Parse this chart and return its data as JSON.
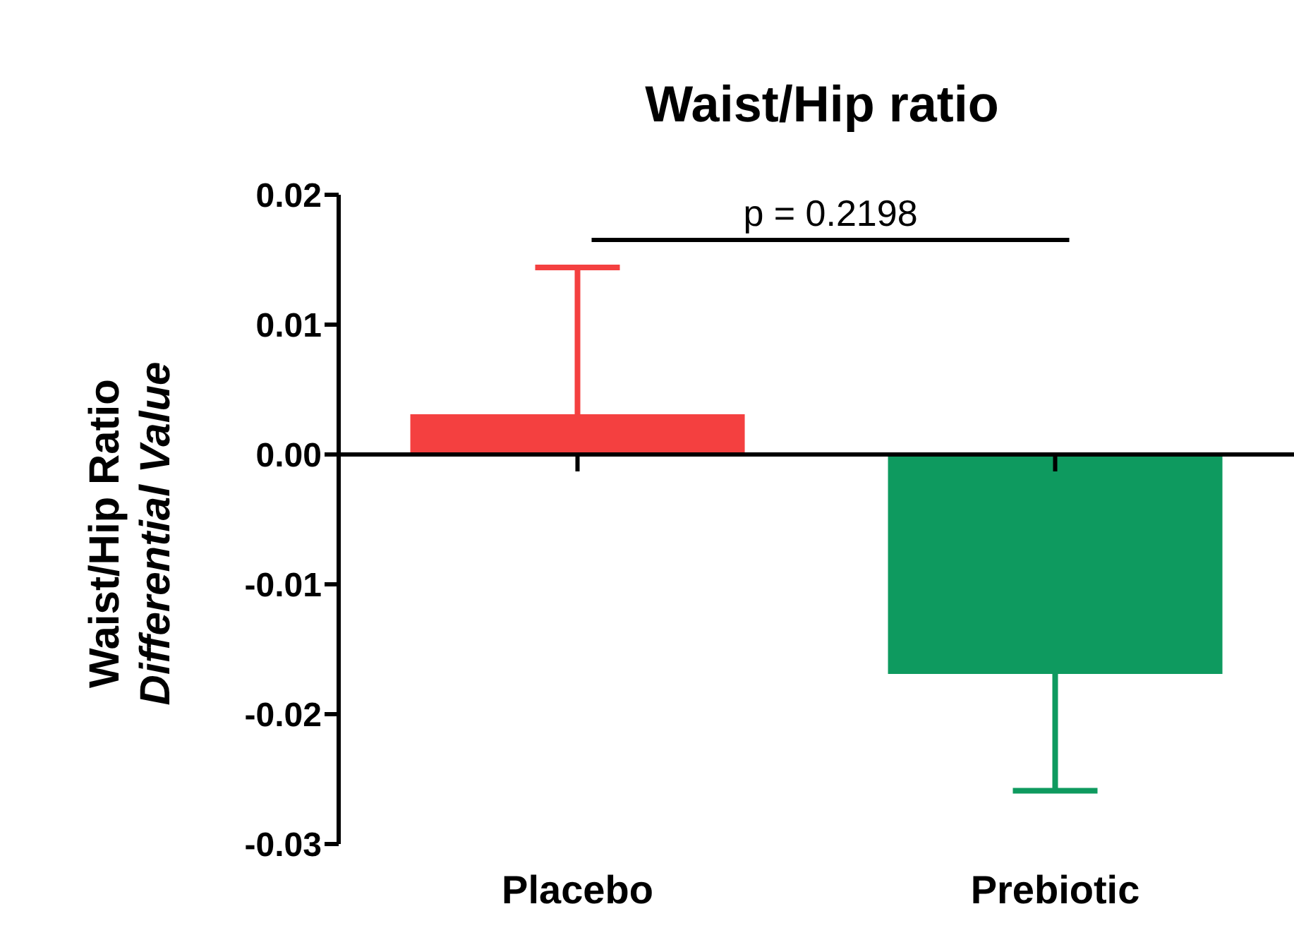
{
  "chart_data": {
    "type": "bar",
    "title": "Waist/Hip ratio",
    "ylabel": "Waist/Hip Ratio\nDifferential Value",
    "categories": [
      "Placebo",
      "Prebiotic"
    ],
    "values": [
      0.0031,
      -0.0169
    ],
    "colors": [
      "#f44040",
      "#0e9a5f"
    ],
    "errors": [
      [
        0.0031,
        0.0144
      ],
      [
        -0.0259,
        -0.0169
      ]
    ],
    "ylim": [
      -0.03,
      0.02
    ],
    "yticks": [
      {
        "value": -0.03,
        "label": "-0.03"
      },
      {
        "value": -0.02,
        "label": "-0.02"
      },
      {
        "value": -0.01,
        "label": "-0.01"
      },
      {
        "value": 0,
        "label": "0.00"
      },
      {
        "value": 0.01,
        "label": "0.01"
      },
      {
        "value": 0.02,
        "label": "0.02"
      }
    ],
    "grid": false,
    "ref_lines": [
      {
        "axis": "y",
        "value": 0,
        "color": "#000000"
      }
    ],
    "annotations": [
      {
        "text": "p = 0.2198"
      }
    ]
  }
}
